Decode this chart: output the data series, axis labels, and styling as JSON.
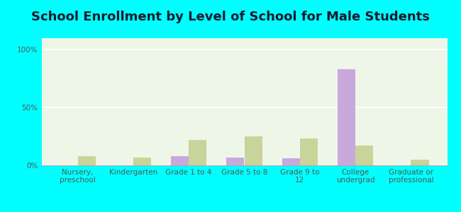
{
  "title": "School Enrollment by Level of School for Male Students",
  "categories": [
    "Nursery,\npreschool",
    "Kindergarten",
    "Grade 1 to 4",
    "Grade 5 to 8",
    "Grade 9 to\n12",
    "College\nundergrad",
    "Graduate or\nprofessional"
  ],
  "scooba": [
    0.0,
    0.0,
    8.0,
    7.0,
    6.0,
    83.0,
    0.0
  ],
  "mississippi": [
    8.0,
    7.0,
    22.0,
    25.0,
    23.0,
    17.0,
    5.0
  ],
  "scooba_color": "#c9a8dc",
  "mississippi_color": "#c8d49a",
  "background_color": "#00ffff",
  "plot_bg": "#eef6e8",
  "yticks": [
    0,
    50,
    100
  ],
  "ylim": [
    0,
    110
  ],
  "bar_width": 0.32,
  "title_fontsize": 13,
  "legend_fontsize": 9,
  "tick_fontsize": 7.5
}
